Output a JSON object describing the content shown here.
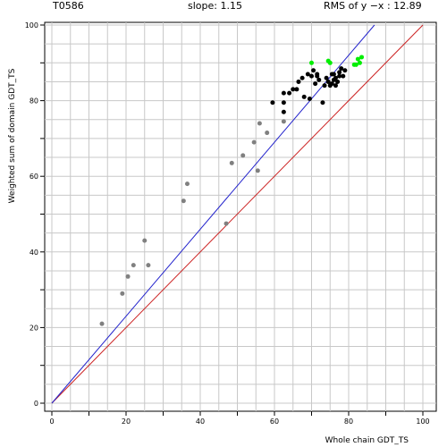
{
  "header": {
    "target": "T0586",
    "slope": "slope: 1.15",
    "rms": "RMS of  y −x : 12.89"
  },
  "chart_data": {
    "type": "scatter",
    "xlabel": "Whole chain GDT_TS",
    "ylabel": "Weighted sum of domain GDT_TS",
    "xlim": [
      0,
      100
    ],
    "ylim": [
      0,
      100
    ],
    "xticks": [
      0,
      20,
      40,
      60,
      80,
      100
    ],
    "yticks": [
      0,
      20,
      40,
      60,
      80,
      100
    ],
    "grid": true,
    "lines": [
      {
        "kind": "identity",
        "slope": 1.0,
        "color": "#cc2222"
      },
      {
        "kind": "fit",
        "slope": 1.15,
        "color": "#2222cc"
      }
    ],
    "series": [
      {
        "color": "#808080",
        "points": [
          [
            13.5,
            21.0
          ],
          [
            19.0,
            29.0
          ],
          [
            20.5,
            33.5
          ],
          [
            22.0,
            36.5
          ],
          [
            25.0,
            43.0
          ],
          [
            26.0,
            36.5
          ],
          [
            35.5,
            53.5
          ],
          [
            36.5,
            58.0
          ],
          [
            47.0,
            47.5
          ],
          [
            48.5,
            63.5
          ],
          [
            51.5,
            65.5
          ],
          [
            54.5,
            69.0
          ],
          [
            55.5,
            61.5
          ],
          [
            56.0,
            74.0
          ],
          [
            58.0,
            71.5
          ],
          [
            62.5,
            74.5
          ]
        ]
      },
      {
        "color": "#000000",
        "points": [
          [
            59.5,
            79.5
          ],
          [
            62.5,
            79.5
          ],
          [
            62.5,
            77.0
          ],
          [
            62.5,
            82.0
          ],
          [
            64.0,
            82.0
          ],
          [
            65.0,
            83.0
          ],
          [
            66.5,
            85.0
          ],
          [
            66.0,
            83.0
          ],
          [
            67.5,
            86.0
          ],
          [
            68.0,
            81.0
          ],
          [
            69.0,
            87.0
          ],
          [
            69.5,
            80.5
          ],
          [
            70.0,
            86.5
          ],
          [
            70.5,
            88.0
          ],
          [
            71.0,
            84.5
          ],
          [
            71.5,
            87.0
          ],
          [
            71.5,
            86.5
          ],
          [
            72.0,
            85.5
          ],
          [
            73.0,
            79.5
          ],
          [
            73.5,
            84.0
          ],
          [
            74.0,
            86.0
          ],
          [
            74.5,
            85.0
          ],
          [
            75.0,
            84.0
          ],
          [
            75.5,
            87.0
          ],
          [
            75.5,
            84.5
          ],
          [
            76.0,
            85.5
          ],
          [
            76.0,
            87.0
          ],
          [
            76.5,
            84.0
          ],
          [
            76.5,
            86.0
          ],
          [
            77.0,
            85.0
          ],
          [
            77.5,
            86.5
          ],
          [
            77.5,
            87.5
          ],
          [
            78.0,
            88.5
          ],
          [
            78.5,
            86.5
          ],
          [
            79.0,
            88.0
          ]
        ]
      },
      {
        "color": "#00ee00",
        "points": [
          [
            70.0,
            90.0
          ],
          [
            74.5,
            90.5
          ],
          [
            75.0,
            90.0
          ],
          [
            81.5,
            89.5
          ],
          [
            82.5,
            91.0
          ],
          [
            83.5,
            91.5
          ],
          [
            83.0,
            90.0
          ],
          [
            82.0,
            89.5
          ]
        ]
      }
    ]
  }
}
